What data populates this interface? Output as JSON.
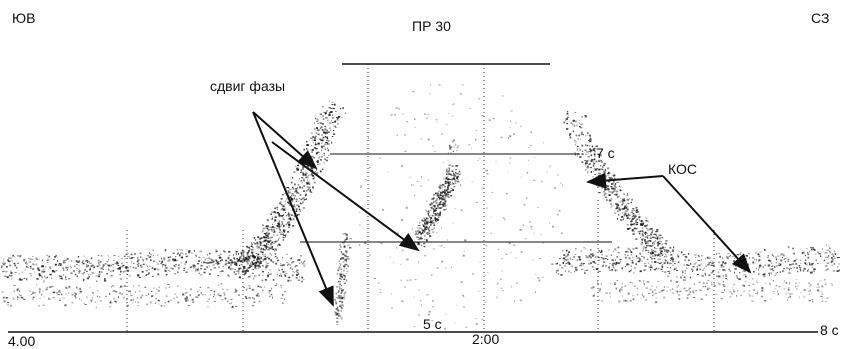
{
  "directions": {
    "left": "ЮВ",
    "right": "СЗ"
  },
  "profile_title": "ПР 30",
  "time_labels": {
    "upper": "7 с",
    "lower": "5 с",
    "bottom_right": "8 с"
  },
  "distance_labels": {
    "start": "4.00",
    "middle": "2:00"
  },
  "annotations": {
    "phase_shift": "сдвиг фазы",
    "kos": "КОС"
  },
  "colors": {
    "ink": "#111111",
    "background": "#ffffff"
  }
}
